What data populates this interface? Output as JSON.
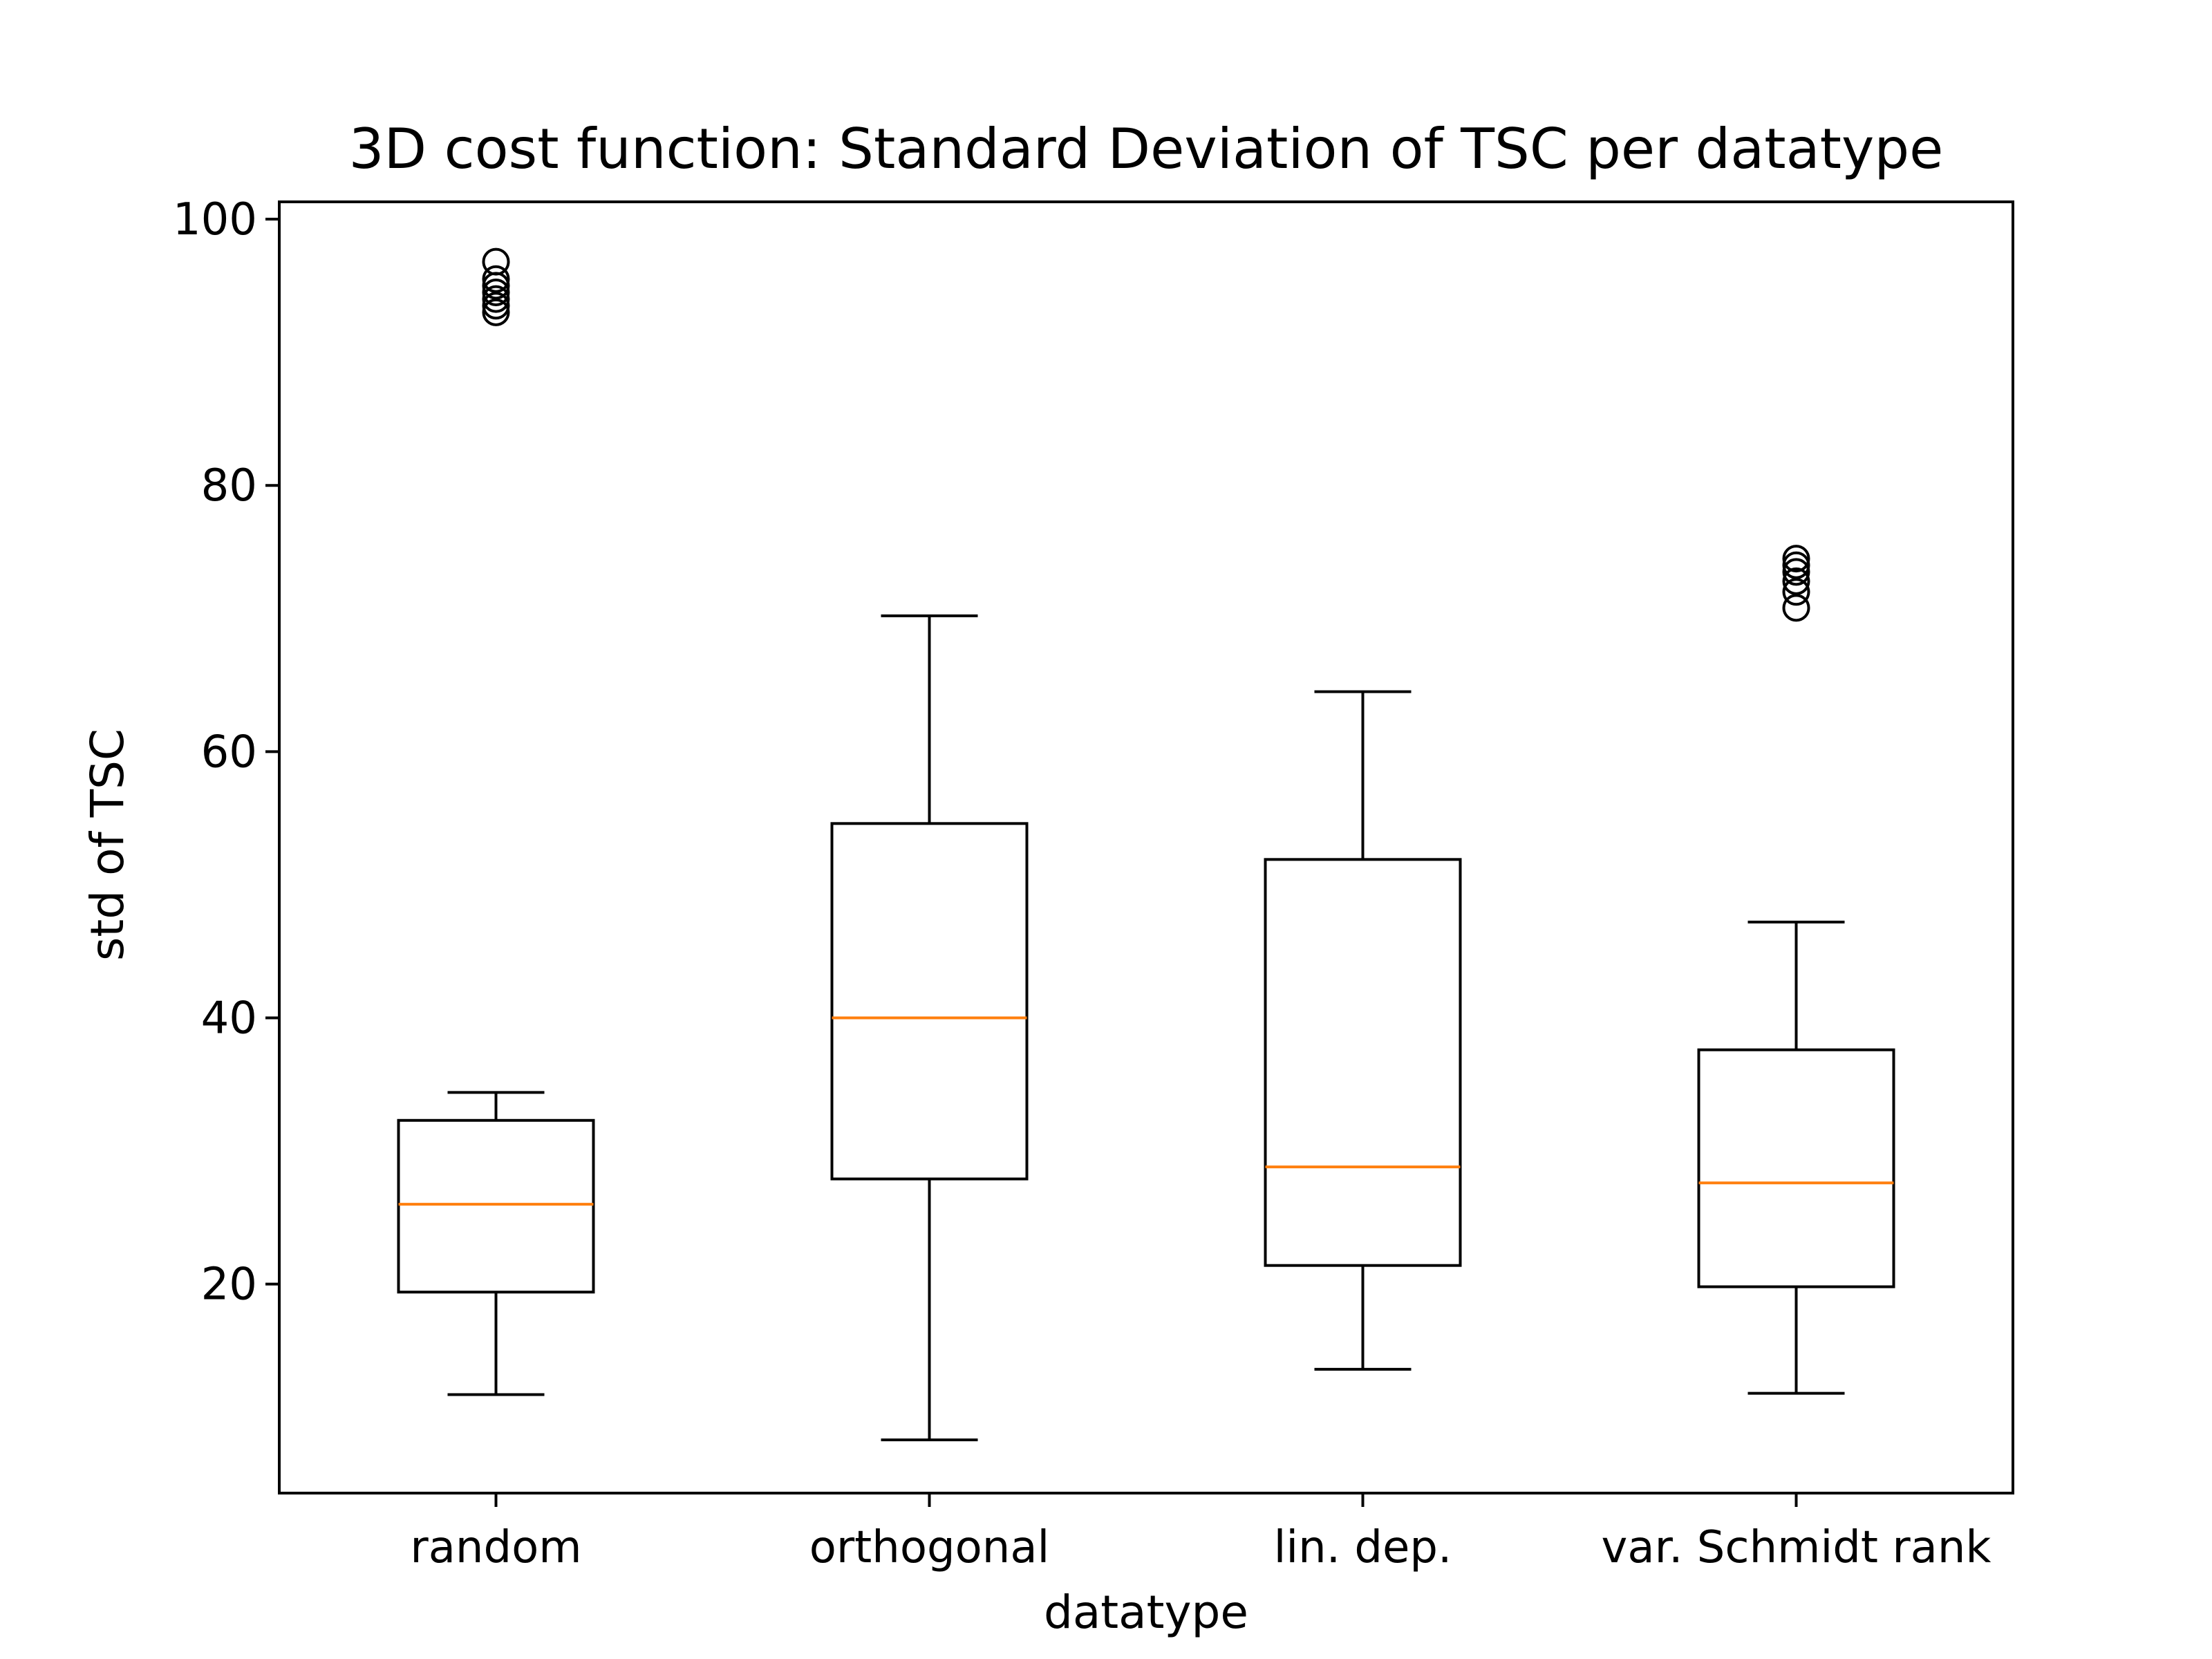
{
  "chart_data": {
    "type": "boxplot",
    "title": "3D cost function: Standard Deviation of TSC per datatype",
    "xlabel": "datatype",
    "ylabel": "std of TSC",
    "ylim": [
      4.3,
      101.3
    ],
    "yticks": [
      20,
      40,
      60,
      80,
      100
    ],
    "categories": [
      "random",
      "orthogonal",
      "lin. dep.",
      "var. Schmidt rank"
    ],
    "boxes": [
      {
        "whisker_low": 11.7,
        "q1": 19.4,
        "median": 26.0,
        "q3": 32.3,
        "whisker_high": 34.4,
        "outliers": [
          93.0,
          93.5,
          94.0,
          94.5,
          95.0,
          95.5,
          96.8
        ]
      },
      {
        "whisker_low": 8.3,
        "q1": 27.9,
        "median": 40.0,
        "q3": 54.6,
        "whisker_high": 70.2,
        "outliers": []
      },
      {
        "whisker_low": 13.6,
        "q1": 21.4,
        "median": 28.8,
        "q3": 51.9,
        "whisker_high": 64.5,
        "outliers": []
      },
      {
        "whisker_low": 11.8,
        "q1": 19.8,
        "median": 27.6,
        "q3": 37.6,
        "whisker_high": 47.2,
        "outliers": [
          70.8,
          72.0,
          72.8,
          73.5,
          74.0,
          74.5
        ]
      }
    ],
    "colors": {
      "box": "#000000",
      "median": "#ff7f0e",
      "outlier": "#000000"
    },
    "grid": false
  }
}
